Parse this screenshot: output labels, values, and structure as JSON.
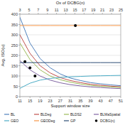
{
  "chart_data": {
    "type": "line",
    "x_label": "Support window size",
    "y_label": "Avg. ISO(u)",
    "x2_label": "Ox of DCBG(n)",
    "xlim": [
      11,
      51
    ],
    "xticks": [
      11,
      15,
      19,
      23,
      27,
      31,
      35,
      39,
      43,
      47,
      51
    ],
    "x2lim": [
      3,
      25
    ],
    "x2ticks": [
      3,
      5,
      7,
      9,
      11,
      13,
      15,
      17,
      19,
      21,
      23,
      25
    ],
    "ylim": [
      0,
      400
    ],
    "yticks": [
      0,
      50,
      100,
      150,
      200,
      250,
      300,
      350,
      400
    ],
    "grid": true,
    "legend": "bottom",
    "x": [
      11,
      15,
      19,
      23,
      27,
      31,
      35,
      39,
      43,
      47,
      51
    ],
    "series": [
      {
        "name": "BL",
        "color": "#4f81bd",
        "marker": "none",
        "line_style": "solid",
        "values": [
          385,
          260,
          185,
          140,
          110,
          90,
          78,
          68,
          62,
          57,
          53
        ]
      },
      {
        "name": "BLDeg",
        "color": "#c0504d",
        "marker": "none",
        "line_style": "solid",
        "values": [
          300,
          210,
          150,
          115,
          92,
          78,
          68,
          60,
          55,
          51,
          48
        ]
      },
      {
        "name": "BLDS2",
        "color": "#9bbb59",
        "marker": "none",
        "line_style": "solid",
        "values": [
          260,
          180,
          130,
          100,
          82,
          70,
          61,
          55,
          50,
          47,
          44
        ]
      },
      {
        "name": "BLMaSpatial",
        "color": "#8064a2",
        "marker": "none",
        "line_style": "solid",
        "values": [
          175,
          130,
          100,
          80,
          67,
          58,
          52,
          47,
          44,
          41,
          39
        ]
      },
      {
        "name": "GEO",
        "color": "#4bacc6",
        "marker": "none",
        "line_style": "solid",
        "values": [
          40,
          65,
          80,
          88,
          93,
          96,
          98,
          100,
          101,
          102,
          103
        ]
      },
      {
        "name": "GEODeg",
        "color": "#f79646",
        "marker": "none",
        "line_style": "solid",
        "values": [
          345,
          345,
          345,
          345,
          345,
          345,
          345,
          345,
          345,
          345,
          345
        ]
      },
      {
        "name": "GP",
        "color": "#2c4d75",
        "marker": "none",
        "line_style": "solid",
        "values": [
          165,
          165,
          165,
          165,
          165,
          165,
          165,
          165,
          165,
          165,
          165
        ]
      },
      {
        "name": "DCBG(n)",
        "color": "#000000",
        "type": "scatter",
        "marker": "circle",
        "line_style": "none",
        "x": [
          13,
          15,
          17,
          33
        ],
        "values": [
          170,
          140,
          100,
          345
        ]
      }
    ]
  }
}
